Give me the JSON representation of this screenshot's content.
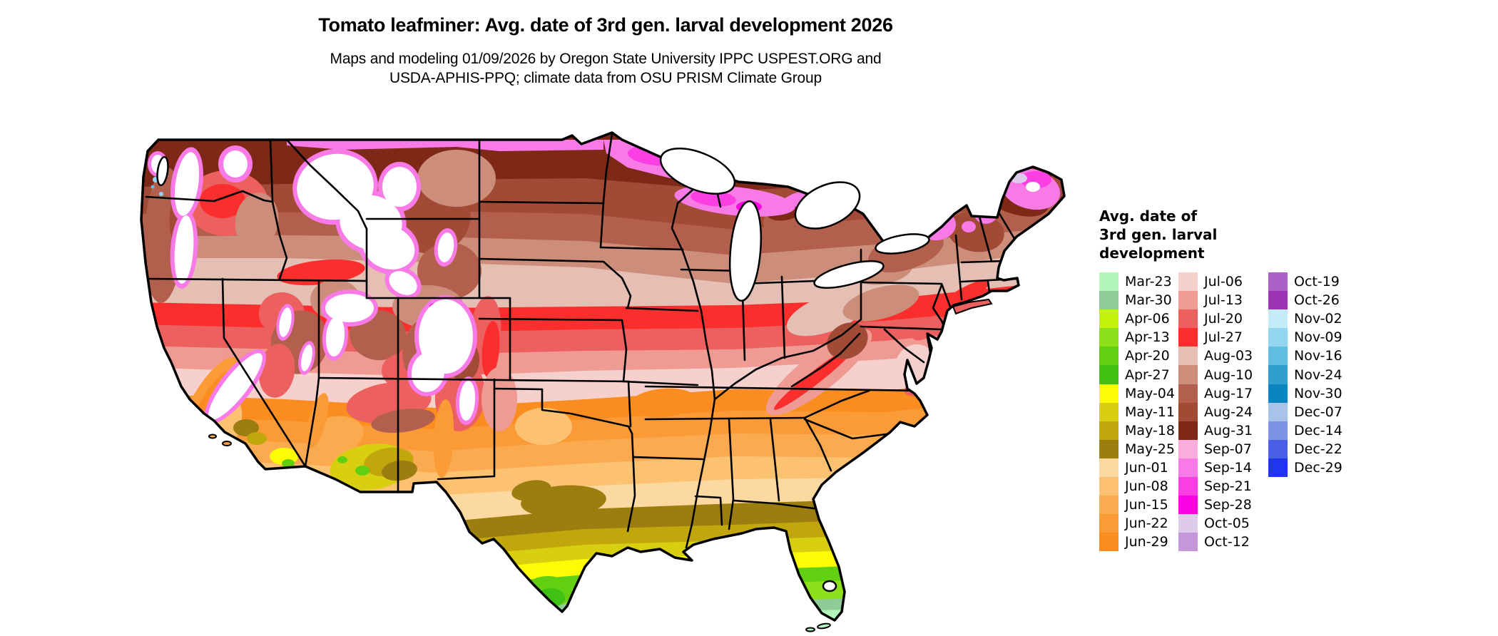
{
  "title": "Tomato leafminer: Avg. date of 3rd gen. larval development 2026",
  "subtitle_line1": "Maps and modeling 01/09/2026 by Oregon State University IPPC USPEST.ORG and",
  "subtitle_line2": "USDA-APHIS-PPQ; climate data from OSU PRISM Climate Group",
  "legend": {
    "title_lines": "Avg. date of\n3rd gen. larval\ndevelopment",
    "groups": [
      [
        {
          "label": "Mar-23",
          "color": "#b3f5bb"
        },
        {
          "label": "Mar-30",
          "color": "#8ecb96"
        },
        {
          "label": "Apr-06",
          "color": "#c4f20a"
        },
        {
          "label": "Apr-13",
          "color": "#8ce01a"
        },
        {
          "label": "Apr-20",
          "color": "#63cf12"
        },
        {
          "label": "Apr-27",
          "color": "#3fc214"
        },
        {
          "label": "May-04",
          "color": "#fdfc04"
        },
        {
          "label": "May-11",
          "color": "#d8cf10"
        },
        {
          "label": "May-18",
          "color": "#c2a70c"
        },
        {
          "label": "May-25",
          "color": "#9c7d10"
        },
        {
          "label": "Jun-01",
          "color": "#fbd9a0"
        },
        {
          "label": "Jun-08",
          "color": "#fcc271"
        },
        {
          "label": "Jun-15",
          "color": "#fbaa50"
        },
        {
          "label": "Jun-22",
          "color": "#fb9b38"
        },
        {
          "label": "Jun-29",
          "color": "#fa8c20"
        }
      ],
      [
        {
          "label": "Jul-06",
          "color": "#f6d0cd"
        },
        {
          "label": "Jul-13",
          "color": "#ef9b94"
        },
        {
          "label": "Jul-20",
          "color": "#ec6060"
        },
        {
          "label": "Jul-27",
          "color": "#fb2e2e"
        },
        {
          "label": "Aug-03",
          "color": "#e5beb4"
        },
        {
          "label": "Aug-10",
          "color": "#cc8d7b"
        },
        {
          "label": "Aug-17",
          "color": "#b2604d"
        },
        {
          "label": "Aug-24",
          "color": "#a14a36"
        },
        {
          "label": "Aug-31",
          "color": "#7e2817"
        },
        {
          "label": "Sep-07",
          "color": "#fbaede"
        },
        {
          "label": "Sep-14",
          "color": "#f87ae6"
        },
        {
          "label": "Sep-21",
          "color": "#fb3fe3"
        },
        {
          "label": "Sep-28",
          "color": "#fb04e4"
        },
        {
          "label": "Oct-05",
          "color": "#decbea"
        },
        {
          "label": "Oct-12",
          "color": "#c697d8"
        }
      ],
      [
        {
          "label": "Oct-19",
          "color": "#ab62c8"
        },
        {
          "label": "Oct-26",
          "color": "#9b35b5"
        },
        {
          "label": "Nov-02",
          "color": "#c3ebfa"
        },
        {
          "label": "Nov-09",
          "color": "#93d6f0"
        },
        {
          "label": "Nov-16",
          "color": "#61bce2"
        },
        {
          "label": "Nov-24",
          "color": "#2f9fd0"
        },
        {
          "label": "Nov-30",
          "color": "#0b85c2"
        },
        {
          "label": "Dec-07",
          "color": "#a9c3e8"
        },
        {
          "label": "Dec-14",
          "color": "#7d94e6"
        },
        {
          "label": "Dec-22",
          "color": "#4a5fe8"
        },
        {
          "label": "Dec-29",
          "color": "#2135ef"
        }
      ]
    ]
  }
}
